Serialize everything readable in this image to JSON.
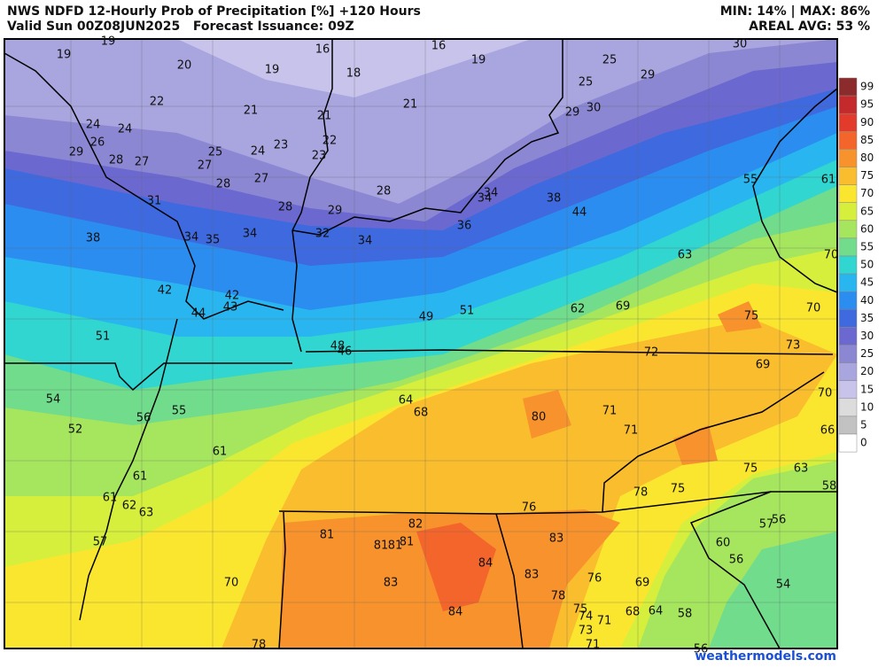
{
  "header": {
    "title": "NWS NDFD 12-Hourly Prob of Precipitation [%] +120 Hours",
    "valid": "Valid Sun 00Z08JUN2025   Forecast Issuance: 09Z",
    "minmax": "MIN: 14% | MAX: 86%",
    "areal_avg": "AREAL AVG: 53 %"
  },
  "legend": {
    "values": [
      99,
      95,
      90,
      85,
      80,
      75,
      70,
      65,
      60,
      55,
      50,
      45,
      40,
      35,
      30,
      25,
      20,
      15,
      10,
      5,
      0
    ],
    "colors": [
      "#8b2b2b",
      "#c42a2c",
      "#e23b2b",
      "#f4652c",
      "#f7922d",
      "#f9bd2e",
      "#fbe62f",
      "#d6ef3c",
      "#a6e55e",
      "#70dc8c",
      "#30d6cf",
      "#29b6f0",
      "#2c8df0",
      "#3e69df",
      "#6b69d0",
      "#8b87d3",
      "#a9a5df",
      "#c7c3eb",
      "#dcdcdc",
      "#c2c2c2",
      "#ffffff"
    ]
  },
  "map": {
    "labels": [
      19,
      19,
      20,
      16,
      18,
      19,
      16,
      19,
      30,
      25,
      29,
      25,
      22,
      21,
      21,
      21,
      29,
      30,
      24,
      24,
      26,
      22,
      23,
      24,
      25,
      29,
      28,
      27,
      27,
      23,
      27,
      28,
      28,
      55,
      61,
      34,
      34,
      38,
      31,
      28,
      29,
      44,
      36,
      38,
      34,
      35,
      34,
      32,
      34,
      63,
      70,
      42,
      42,
      43,
      44,
      49,
      51,
      62,
      69,
      75,
      70,
      51,
      48,
      46,
      73,
      72,
      69,
      54,
      64,
      68,
      80,
      71,
      70,
      56,
      55,
      52,
      71,
      66,
      61,
      61,
      75,
      63,
      75,
      78,
      58,
      61,
      62,
      63,
      76,
      57,
      56,
      57,
      81,
      82,
      81,
      81,
      81,
      83,
      60,
      56,
      84,
      83,
      76,
      69,
      54,
      70,
      83,
      78,
      75,
      74,
      71,
      68,
      64,
      58,
      84,
      73,
      71,
      78,
      56
    ]
  },
  "footer": {
    "watermark": "weathermodels.com"
  }
}
